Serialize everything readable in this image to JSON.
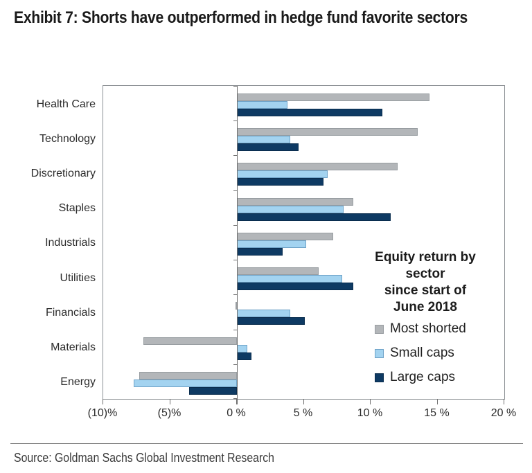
{
  "title": "Exhibit 7: Shorts have outperformed in hedge fund favorite sectors",
  "source": "Source: Goldman Sachs Global Investment Research",
  "chart_data": {
    "type": "bar",
    "orientation": "horizontal",
    "title": "Exhibit 7: Shorts have outperformed in hedge fund favorite sectors",
    "legend_title_lines": [
      "Equity return by",
      "sector",
      "since start of",
      "June 2018"
    ],
    "legend_position": "inside-right",
    "grid": false,
    "categories": [
      "Health Care",
      "Technology",
      "Discretionary",
      "Staples",
      "Industrials",
      "Utilities",
      "Financials",
      "Materials",
      "Energy"
    ],
    "series": [
      {
        "name": "Most shorted",
        "color": "#b3b6b9",
        "border_color": "#989da1",
        "values": [
          14.4,
          13.5,
          12.0,
          8.7,
          7.2,
          6.1,
          -0.1,
          -7.0,
          -7.3
        ]
      },
      {
        "name": "Small caps",
        "color": "#a3d3f0",
        "border_color": "#6fa3c8",
        "values": [
          3.8,
          4.0,
          6.8,
          8.0,
          5.2,
          7.9,
          4.0,
          0.8,
          -7.7
        ]
      },
      {
        "name": "Large caps",
        "color": "#0e3a63",
        "border_color": "#0a2d4e",
        "values": [
          10.9,
          4.6,
          6.5,
          11.5,
          3.4,
          8.7,
          5.1,
          1.1,
          -3.6
        ]
      }
    ],
    "xlim": [
      -10,
      20
    ],
    "x_ticks": [
      -10,
      -5,
      0,
      5,
      10,
      15,
      20
    ],
    "x_tick_labels": [
      "(10)%",
      "(5)%",
      "0 %",
      "5 %",
      "10 %",
      "15 %",
      "20 %"
    ],
    "unit": "%"
  }
}
